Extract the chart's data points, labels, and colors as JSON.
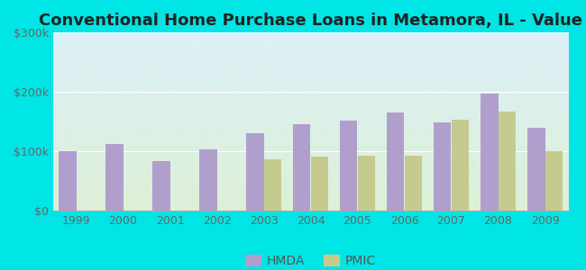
{
  "title": "Conventional Home Purchase Loans in Metamora, IL - Value",
  "years": [
    1999,
    2000,
    2001,
    2002,
    2003,
    2004,
    2005,
    2006,
    2007,
    2008,
    2009
  ],
  "hmda": [
    100000,
    112000,
    83000,
    103000,
    130000,
    145000,
    152000,
    165000,
    148000,
    197000,
    140000
  ],
  "pmic": [
    null,
    null,
    null,
    null,
    87000,
    91000,
    93000,
    92000,
    153000,
    167000,
    100000
  ],
  "hmda_color": "#b09fcc",
  "pmic_color": "#c5cb8e",
  "ylim": [
    0,
    300000
  ],
  "yticks": [
    0,
    100000,
    200000,
    300000
  ],
  "ytick_labels": [
    "$0",
    "$100k",
    "$200k",
    "$300k"
  ],
  "outer_bg": "#00e5e5",
  "bar_width": 0.38,
  "title_fontsize": 13,
  "tick_fontsize": 9,
  "legend_fontsize": 10
}
